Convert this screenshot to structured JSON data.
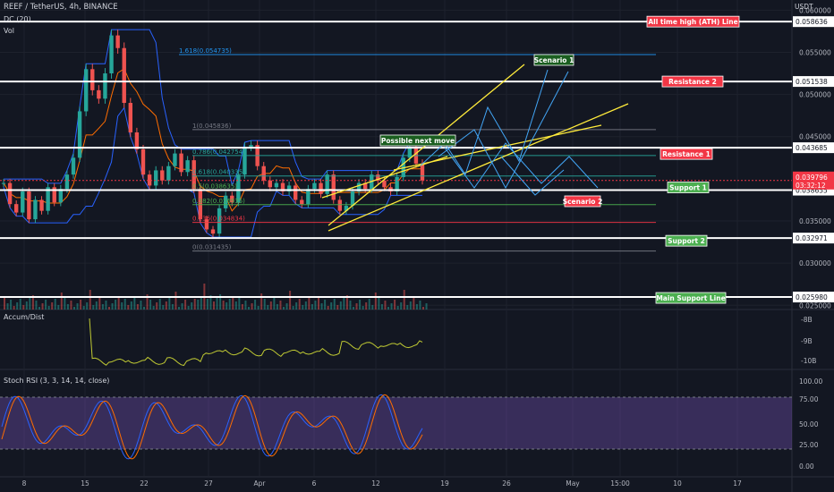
{
  "header": {
    "title": "REEF / TetherUS, 4h, BINANCE",
    "indicator1": "DC (20)",
    "indicator2": "Vol",
    "currency": "USDT"
  },
  "panes": {
    "accum_title": "Accum/Dist",
    "rsi_title": "Stoch RSI (3, 3, 14, 14, close)"
  },
  "price_axis": {
    "ticks": [
      "0.060000",
      "0.055000",
      "0.050000",
      "0.045000",
      "0.035000",
      "0.030000",
      "0.025000"
    ],
    "tick_values": [
      0.06,
      0.055,
      0.05,
      0.045,
      0.035,
      0.03,
      0.025
    ],
    "level_labels": [
      {
        "text": "0.058636",
        "value": 0.058636
      },
      {
        "text": "0.051538",
        "value": 0.051538
      },
      {
        "text": "0.043685",
        "value": 0.043685
      },
      {
        "text": "0.038655",
        "value": 0.038655
      },
      {
        "text": "0.032971",
        "value": 0.032971
      },
      {
        "text": "0.025980",
        "value": 0.02598
      }
    ],
    "current_price": "0.039796",
    "countdown": "03:32:12",
    "current_value": 0.039796,
    "current_color": "#f23645"
  },
  "accum_axis": {
    "ticks": [
      "-8B",
      "-9B",
      "-10B"
    ]
  },
  "rsi_axis": {
    "ticks": [
      "100.00",
      "75.00",
      "50.00",
      "25.00",
      "0.00"
    ],
    "values": [
      100,
      75,
      50,
      25,
      0
    ]
  },
  "time_axis": {
    "labels": [
      "8",
      "15",
      "22",
      "27",
      "Apr",
      "6",
      "12",
      "19",
      "26",
      "May",
      "15:00",
      "10",
      "17"
    ]
  },
  "annotations": {
    "ath": "All time high (ATH) Line",
    "resistance2": "Resistance 2",
    "resistance1": "Resistance 1",
    "support1": "Support 1",
    "support2": "Support 2",
    "main_support": "Main Support Line",
    "scenario1": "Scenario 1",
    "scenario2": "Scenario 2",
    "possible_move": "Possible next move"
  },
  "fib": {
    "labels": [
      "1.618(0.054735)",
      "1(0.045836)",
      "0.786(0.042754)",
      "0.618(0.040335)",
      "0.5(0.038635)",
      "0.382(0.036935)",
      "0.236(0.034834)",
      "0(0.031435)"
    ],
    "values": [
      0.054735,
      0.045836,
      0.042754,
      0.040335,
      0.038635,
      0.036935,
      0.034834,
      0.031435
    ]
  },
  "chart_data": {
    "type": "line",
    "title": "REEF / TetherUS, 4h, BINANCE",
    "xlabel": "",
    "ylabel": "",
    "ylim": [
      0.0245,
      0.0612
    ],
    "grid": true,
    "horizontal_levels": [
      0.058636,
      0.051538,
      0.043685,
      0.038655,
      0.032971,
      0.02598
    ],
    "fibonacci_levels": [
      0.054735,
      0.045836,
      0.042754,
      0.040335,
      0.038635,
      0.036935,
      0.034834,
      0.031435
    ],
    "current_price": 0.039796,
    "series": [
      {
        "values": [
          0.0395,
          0.037,
          0.036,
          0.0385,
          0.0352,
          0.0375,
          0.0362,
          0.039,
          0.0372,
          0.0388,
          0.0405,
          0.0425,
          0.048,
          0.053,
          0.0505,
          0.0495,
          0.0525,
          0.057,
          0.0555,
          0.049,
          0.0455,
          0.0435,
          0.0405,
          0.0392,
          0.041,
          0.0398,
          0.0415,
          0.043,
          0.0408,
          0.0422,
          0.0388,
          0.0352,
          0.034,
          0.0335,
          0.0365,
          0.038,
          0.0372,
          0.0405,
          0.0438,
          0.044,
          0.0415,
          0.0398,
          0.039,
          0.0395,
          0.0385,
          0.0392,
          0.0375,
          0.037,
          0.0388,
          0.0395,
          0.0382,
          0.0405,
          0.0375,
          0.0362,
          0.0368,
          0.0385,
          0.0395,
          0.0388,
          0.0405,
          0.0398,
          0.039,
          0.0385,
          0.0402,
          0.0425,
          0.0438,
          0.0418,
          0.0398
        ]
      }
    ]
  }
}
